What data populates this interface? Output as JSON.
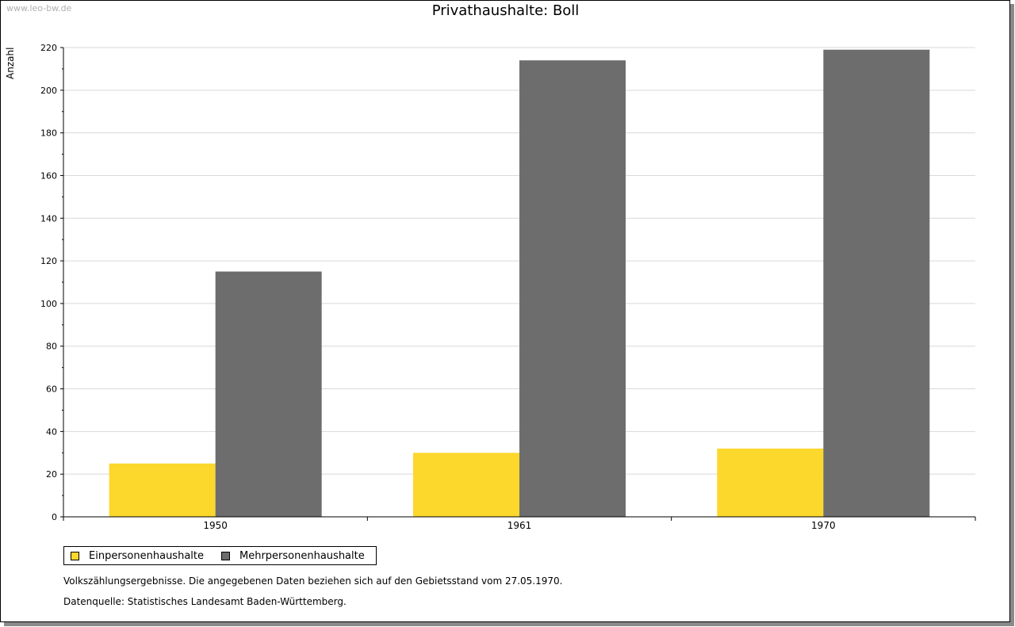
{
  "watermark": "www.leo-bw.de",
  "colors": {
    "einpersonen": "#FCD72C",
    "mehrpersonen": "#6D6D6D",
    "grid": "#d9d9d9",
    "axis": "#000000"
  },
  "chart_data": {
    "type": "bar",
    "title": "Privathaushalte: Boll",
    "xlabel": "",
    "ylabel": "Anzahl",
    "categories": [
      "1950",
      "1961",
      "1970"
    ],
    "series": [
      {
        "name": "Einpersonenhaushalte",
        "values": [
          25,
          30,
          32
        ]
      },
      {
        "name": "Mehrpersonenhaushalte",
        "values": [
          115,
          214,
          219
        ]
      }
    ],
    "ylim": [
      0,
      220
    ],
    "yticks": [
      "0",
      "20",
      "40",
      "60",
      "80",
      "100",
      "120",
      "140",
      "160",
      "180",
      "200",
      "220"
    ],
    "grid": true,
    "legend": "bottom-left"
  },
  "notes": {
    "line1": "Volkszählungsergebnisse. Die angegebenen Daten beziehen sich auf den Gebietsstand vom 27.05.1970.",
    "line2": "Datenquelle: Statistisches Landesamt Baden-Württemberg."
  }
}
